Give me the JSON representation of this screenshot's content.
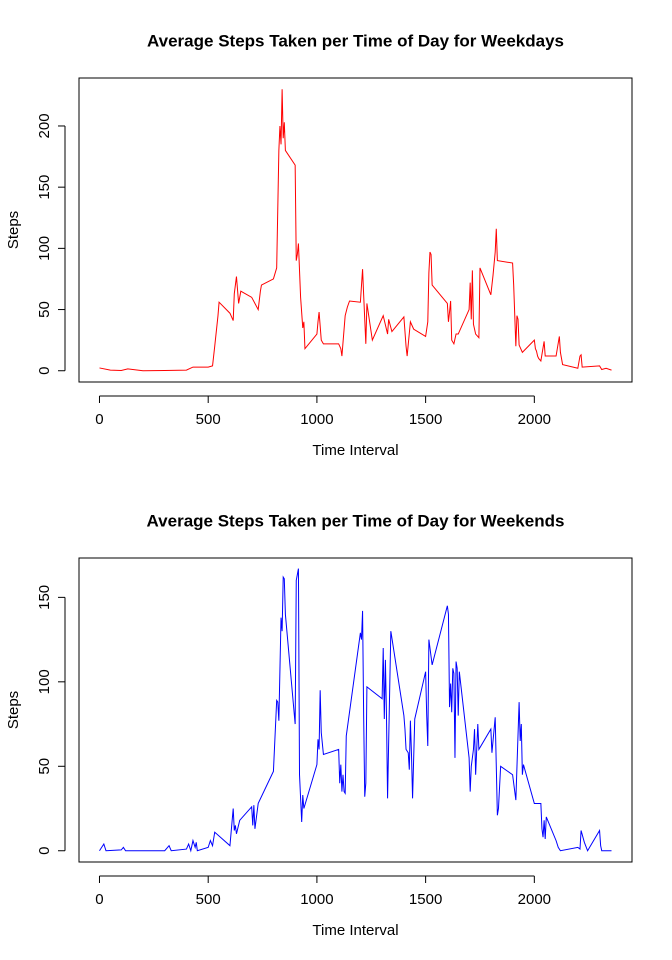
{
  "chart_data": [
    {
      "type": "line",
      "title": "Average Steps Taken per Time of Day for Weekdays",
      "xlabel": "Time Interval",
      "ylabel": "Steps",
      "color": "#ff0000",
      "x": [
        0,
        50,
        100,
        130,
        200,
        300,
        400,
        430,
        500,
        520,
        530,
        545,
        550,
        600,
        615,
        620,
        630,
        640,
        650,
        700,
        730,
        740,
        745,
        800,
        815,
        825,
        830,
        835,
        840,
        845,
        850,
        855,
        900,
        905,
        910,
        915,
        925,
        935,
        940,
        945,
        1000,
        1005,
        1010,
        1020,
        1030,
        1100,
        1110,
        1115,
        1130,
        1140,
        1150,
        1200,
        1210,
        1215,
        1225,
        1230,
        1255,
        1305,
        1325,
        1330,
        1345,
        1400,
        1410,
        1415,
        1430,
        1445,
        1500,
        1510,
        1515,
        1520,
        1525,
        1530,
        1600,
        1605,
        1610,
        1615,
        1620,
        1630,
        1640,
        1650,
        1700,
        1705,
        1710,
        1715,
        1720,
        1730,
        1745,
        1750,
        1800,
        1810,
        1820,
        1825,
        1830,
        1900,
        1905,
        1915,
        1920,
        1925,
        1930,
        1945,
        2000,
        2005,
        2010,
        2015,
        2020,
        2030,
        2045,
        2050,
        2100,
        2115,
        2120,
        2130,
        2200,
        2210,
        2215,
        2220,
        2300,
        2310,
        2330,
        2355
      ],
      "values": [
        2.3,
        0.5,
        0.2,
        1.5,
        0,
        0.2,
        0.5,
        3,
        3,
        4,
        20,
        45,
        56,
        47,
        41,
        63,
        77,
        55,
        65,
        60,
        50,
        65,
        70,
        75,
        84,
        180,
        200,
        185,
        230,
        190,
        203,
        180,
        168,
        90,
        95,
        104,
        60,
        35,
        40,
        18,
        30,
        40,
        48,
        25,
        22,
        22,
        18,
        12,
        45,
        52,
        57,
        56,
        83,
        62,
        22,
        55,
        25,
        45,
        30,
        42,
        32,
        44,
        20,
        12,
        40,
        34,
        28,
        40,
        80,
        97,
        95,
        70,
        55,
        40,
        48,
        57,
        25,
        22,
        30,
        30,
        50,
        72,
        42,
        82,
        38,
        30,
        27,
        84,
        62,
        78,
        97,
        116,
        90,
        88,
        70,
        20,
        45,
        42,
        21,
        15,
        25,
        18,
        16,
        12,
        10,
        8,
        24,
        12,
        12,
        28,
        15,
        5,
        2,
        12,
        13,
        3,
        4,
        1,
        2,
        0.5
      ],
      "xlim": [
        -94.2,
        2449.2
      ],
      "ylim": [
        -9.2,
        239.2
      ],
      "xticks": [
        0,
        500,
        1000,
        1500,
        2000
      ],
      "yticks": [
        0,
        50,
        100,
        150,
        200
      ]
    },
    {
      "type": "line",
      "title": "Average Steps Taken per Time of Day for Weekends",
      "xlabel": "Time Interval",
      "ylabel": "Steps",
      "color": "#0000ff",
      "x": [
        0,
        20,
        30,
        100,
        110,
        120,
        200,
        300,
        320,
        330,
        400,
        410,
        420,
        430,
        440,
        445,
        450,
        500,
        510,
        520,
        530,
        600,
        615,
        620,
        625,
        630,
        645,
        700,
        705,
        710,
        715,
        730,
        800,
        815,
        820,
        825,
        835,
        840,
        845,
        850,
        855,
        900,
        905,
        915,
        920,
        930,
        935,
        940,
        1000,
        1005,
        1010,
        1015,
        1020,
        1030,
        1100,
        1105,
        1110,
        1115,
        1120,
        1125,
        1130,
        1135,
        1200,
        1205,
        1210,
        1215,
        1220,
        1225,
        1230,
        1300,
        1305,
        1310,
        1315,
        1320,
        1325,
        1340,
        1400,
        1405,
        1410,
        1420,
        1425,
        1430,
        1435,
        1440,
        1450,
        1500,
        1505,
        1510,
        1515,
        1530,
        1600,
        1605,
        1610,
        1615,
        1620,
        1625,
        1630,
        1635,
        1640,
        1645,
        1650,
        1655,
        1700,
        1705,
        1710,
        1720,
        1725,
        1730,
        1740,
        1745,
        1800,
        1805,
        1820,
        1830,
        1835,
        1845,
        1900,
        1915,
        1930,
        1935,
        1940,
        1945,
        1950,
        2000,
        2030,
        2035,
        2040,
        2045,
        2050,
        2055,
        2100,
        2110,
        2120,
        2200,
        2210,
        2215,
        2230,
        2245,
        2300,
        2305,
        2310,
        2355
      ],
      "values": [
        0,
        4,
        0,
        0.5,
        2,
        0,
        0,
        0,
        3,
        0,
        1,
        4,
        0,
        6,
        2,
        5,
        0,
        2,
        6,
        3,
        11,
        3,
        25,
        12,
        15,
        10,
        18,
        26,
        15,
        27,
        13,
        28,
        47,
        89,
        88,
        77,
        138,
        130,
        162,
        161,
        140,
        75,
        160,
        167,
        45,
        17,
        33,
        25,
        51,
        66,
        60,
        95,
        70,
        57,
        60,
        40,
        51,
        35,
        45,
        35,
        34,
        68,
        129,
        125,
        142,
        80,
        32,
        40,
        97,
        90,
        120,
        78,
        113,
        80,
        31,
        130,
        80,
        72,
        60,
        58,
        48,
        77,
        57,
        31,
        78,
        106,
        80,
        62,
        125,
        110,
        145,
        140,
        85,
        99,
        82,
        108,
        105,
        55,
        112,
        108,
        80,
        106,
        55,
        35,
        50,
        60,
        72,
        45,
        75,
        60,
        72,
        58,
        79,
        21,
        25,
        50,
        45,
        30,
        88,
        65,
        75,
        45,
        51,
        28,
        28,
        13,
        8,
        18,
        7,
        20,
        6,
        2,
        0,
        2,
        1,
        12,
        5,
        0,
        12,
        3,
        0,
        0
      ],
      "xlim": [
        -94.2,
        2449.2
      ],
      "ylim": [
        -6.66,
        173.3
      ],
      "xticks": [
        0,
        500,
        1000,
        1500,
        2000
      ],
      "yticks": [
        0,
        50,
        100,
        150
      ]
    }
  ]
}
